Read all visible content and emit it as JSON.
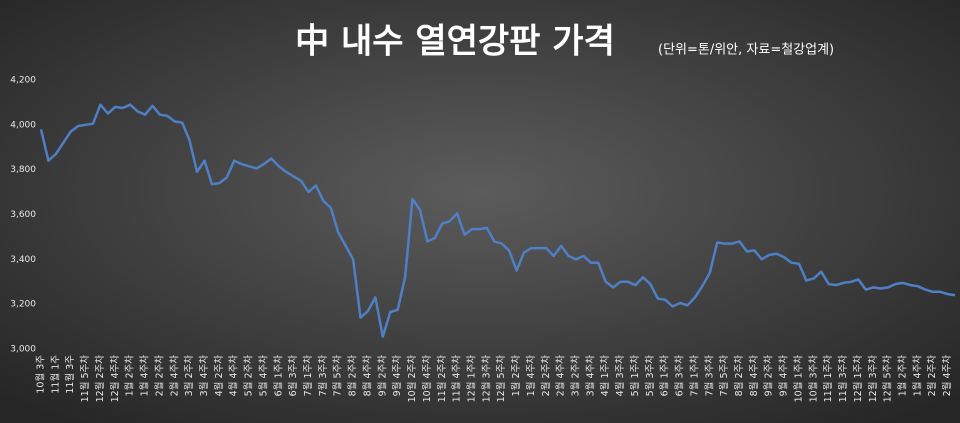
{
  "chart_data": {
    "type": "line",
    "title": "中 내수 열연강판 가격",
    "subtitle": "(단위=톤/위안, 자료=철강업계)",
    "categories": [
      "10월 3주",
      null,
      "11월 1주",
      null,
      "11월 3주",
      null,
      "11월 5주차",
      null,
      "12월 2주차",
      null,
      "12월 4주차",
      null,
      "1월 2주차",
      null,
      "1월 4주차",
      null,
      "2월 2주차",
      null,
      "2월 4주차",
      null,
      "3월 2주차",
      null,
      "3월 4주차",
      null,
      "4월 2주차",
      null,
      "4월 4주차",
      null,
      "5월 2주차",
      null,
      "5월 4주차",
      null,
      "6월 1주차",
      null,
      "6월 3주차",
      null,
      "7월 1주차",
      null,
      "7월 3주차",
      null,
      "7월 5주차",
      null,
      "8월 2주차",
      null,
      "8월 4주차",
      null,
      "9월 2주차",
      null,
      "9월 4주차",
      null,
      "10월 2주차",
      null,
      "10월 4주차",
      null,
      "11월 2주차",
      null,
      "11월 4주차",
      null,
      "12월 1주차",
      null,
      "12월 3주차",
      null,
      "12월 5주차",
      null,
      "1월 2주차",
      null,
      "1월 4주차",
      null,
      "2월 2주차",
      null,
      "2월 4주차",
      null,
      "3월 2주차",
      null,
      "3월 4주차",
      null,
      "4월 1주차",
      null,
      "4월 3주차",
      null,
      "5월 1주차",
      null,
      "5월 3주차",
      null,
      "6월 1주차",
      null,
      "6월 3주차",
      null,
      "7월 1주차",
      null,
      "7월 3주차",
      null,
      "7월 5주차",
      null,
      "8월 2주차",
      null,
      "8월 4주차",
      null,
      "9월 2주차",
      null,
      "9월 4주차",
      null,
      "10월 1주차",
      null,
      "10월 3주차",
      null,
      "11월 1주차",
      null,
      "11월 3주차",
      null,
      "12월 1주차",
      null,
      "12월 3주차",
      null,
      "12월 5주차",
      null,
      "1월 2주차",
      null,
      "1월 4주차",
      null,
      "2월 2주차",
      null,
      "2월 4주차",
      null
    ],
    "series": [
      {
        "color": "#4f7fc4",
        "values": [
          3980,
          3840,
          3870,
          3920,
          3970,
          3995,
          4000,
          4005,
          4090,
          4050,
          4080,
          4075,
          4090,
          4060,
          4045,
          4085,
          4045,
          4040,
          4015,
          4010,
          3930,
          3790,
          3840,
          3735,
          3740,
          3765,
          3840,
          3825,
          3815,
          3805,
          3825,
          3850,
          3815,
          3790,
          3770,
          3750,
          3700,
          3730,
          3660,
          3630,
          3520,
          3460,
          3400,
          3140,
          3170,
          3230,
          3055,
          3165,
          3175,
          3320,
          3670,
          3620,
          3480,
          3495,
          3560,
          3570,
          3605,
          3510,
          3535,
          3535,
          3540,
          3480,
          3470,
          3440,
          3350,
          3430,
          3450,
          3450,
          3450,
          3415,
          3460,
          3415,
          3400,
          3415,
          3385,
          3385,
          3300,
          3275,
          3300,
          3300,
          3285,
          3320,
          3290,
          3225,
          3220,
          3190,
          3205,
          3195,
          3230,
          3280,
          3340,
          3475,
          3470,
          3470,
          3480,
          3435,
          3440,
          3400,
          3420,
          3425,
          3410,
          3385,
          3380,
          3305,
          3315,
          3345,
          3290,
          3285,
          3295,
          3300,
          3310,
          3265,
          3275,
          3270,
          3275,
          3290,
          3295,
          3285,
          3280,
          3265,
          3255,
          3255,
          3245,
          3240
        ]
      }
    ],
    "ylim": [
      3000,
      4200
    ],
    "yticks": [
      {
        "value": 3000,
        "label": "3,000"
      },
      {
        "value": 3200,
        "label": "3,200"
      },
      {
        "value": 3400,
        "label": "3,400"
      },
      {
        "value": 3600,
        "label": "3,600"
      },
      {
        "value": 3800,
        "label": "3,800"
      },
      {
        "value": 4000,
        "label": "4,000"
      },
      {
        "value": 4200,
        "label": "4,200"
      }
    ],
    "grid": false
  }
}
